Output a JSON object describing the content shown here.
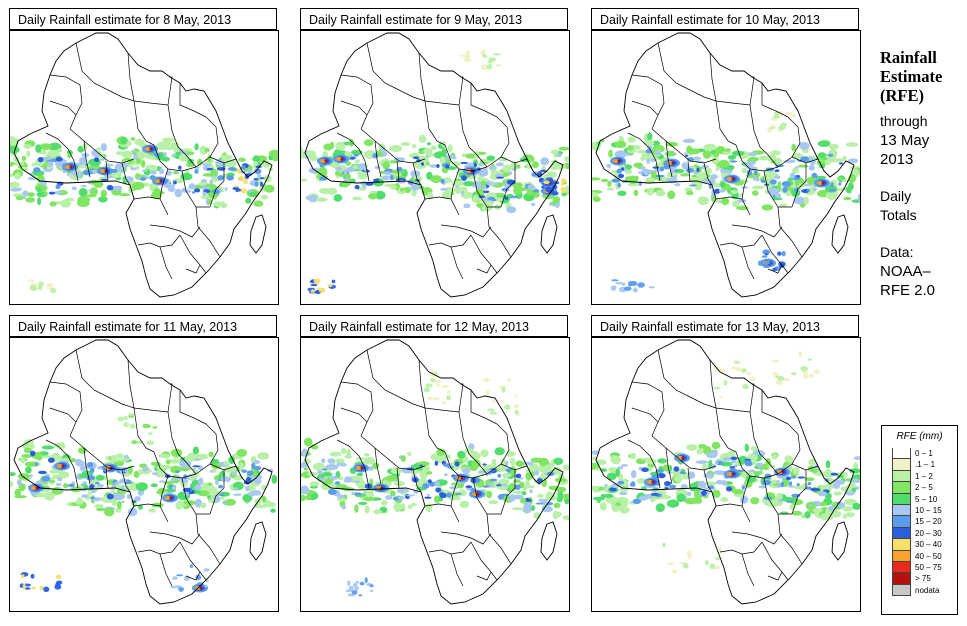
{
  "panels": [
    {
      "title": "Daily Rainfall estimate for  8 May, 2013"
    },
    {
      "title": "Daily Rainfall estimate for  9 May, 2013"
    },
    {
      "title": "Daily Rainfall estimate for  10 May, 2013"
    },
    {
      "title": "Daily Rainfall estimate for  11 May, 2013"
    },
    {
      "title": "Daily Rainfall estimate for  12 May, 2013"
    },
    {
      "title": "Daily Rainfall estimate for  13 May, 2013"
    }
  ],
  "side": {
    "heading_1": "Rainfall",
    "heading_2": "Estimate",
    "heading_3": "(RFE)",
    "through": "through",
    "date_1": "13 May",
    "date_2": "2013",
    "type_1": "Daily",
    "type_2": "Totals",
    "source_label": "Data:",
    "source_1": "NOAA–",
    "source_2": "RFE 2.0"
  },
  "legend": {
    "title": "RFE (mm)",
    "items": [
      {
        "label": "0 – 1",
        "color": "#ffffff"
      },
      {
        "label": ".1 – 1",
        "color": "#f2f0c4"
      },
      {
        "label": "1 – 2",
        "color": "#b9f0a8"
      },
      {
        "label": "2 – 5",
        "color": "#80e560"
      },
      {
        "label": "5 – 10",
        "color": "#51dd6c"
      },
      {
        "label": "10 – 15",
        "color": "#a9c8f1"
      },
      {
        "label": "15 – 20",
        "color": "#5b9cec"
      },
      {
        "label": "20 – 30",
        "color": "#2a5fe0"
      },
      {
        "label": "30 – 40",
        "color": "#f7df6a"
      },
      {
        "label": "40 – 50",
        "color": "#fba22a"
      },
      {
        "label": "50 – 75",
        "color": "#e8291b"
      },
      {
        "label": "> 75",
        "color": "#b6100e"
      },
      {
        "label": "nodata",
        "color": "#c8c8c8"
      }
    ]
  }
}
